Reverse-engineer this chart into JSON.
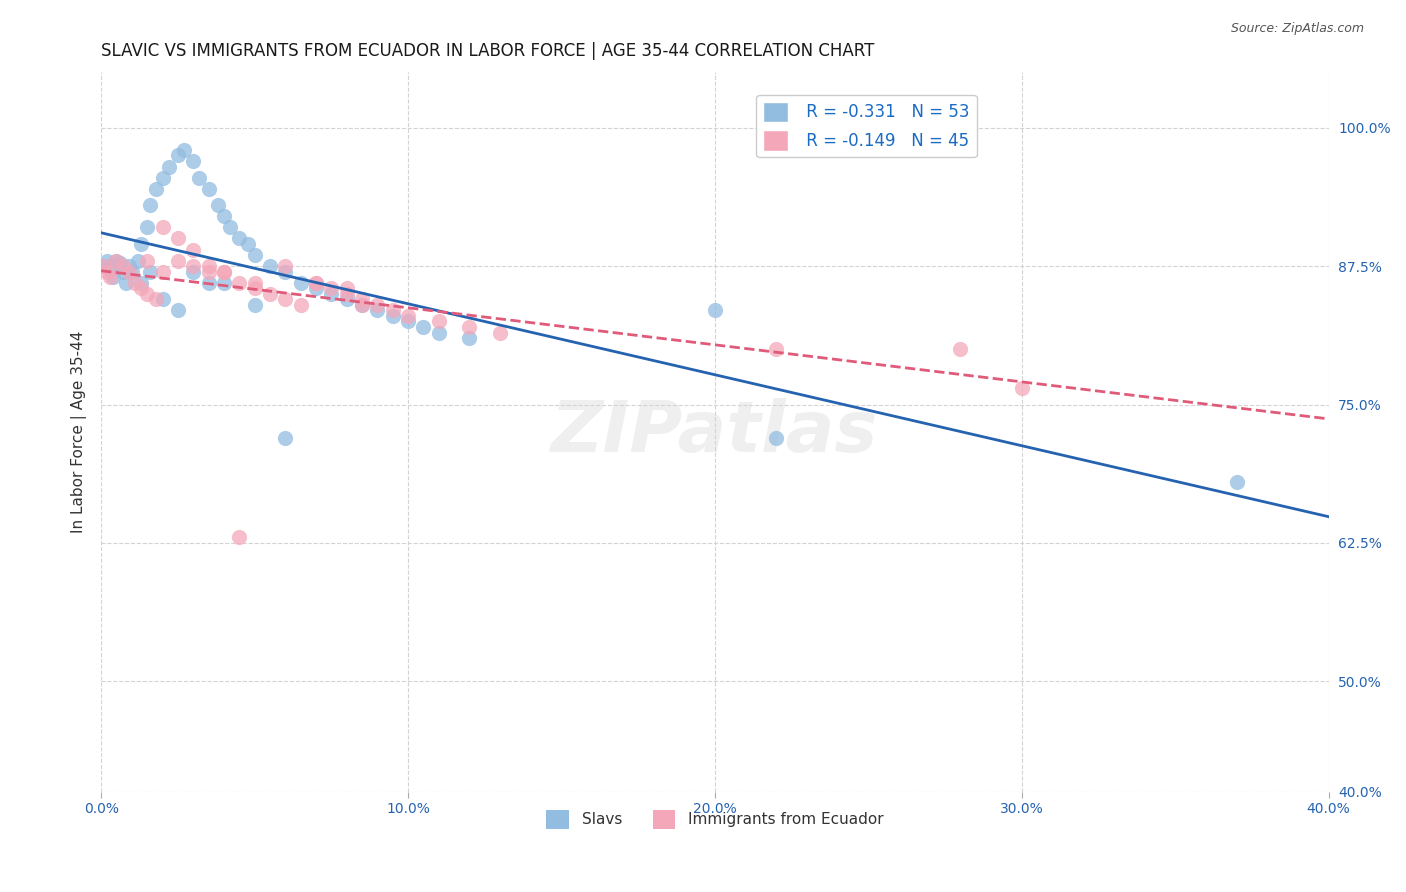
{
  "title": "SLAVIC VS IMMIGRANTS FROM ECUADOR IN LABOR FORCE | AGE 35-44 CORRELATION CHART",
  "source": "Source: ZipAtlas.com",
  "ylabel": "In Labor Force | Age 35-44",
  "xlabel_ticks": [
    "0.0%",
    "10.0%",
    "20.0%",
    "30.0%",
    "40.0%"
  ],
  "xlabel_vals": [
    0.0,
    0.1,
    0.2,
    0.3,
    0.4
  ],
  "ylabel_ticks": [
    "40.0%",
    "50.0%",
    "62.5%",
    "75.0%",
    "87.5%",
    "100.0%"
  ],
  "ylabel_vals": [
    0.4,
    0.5,
    0.625,
    0.75,
    0.875,
    1.0
  ],
  "xlim": [
    0.0,
    0.4
  ],
  "ylim": [
    0.4,
    1.05
  ],
  "slavs_R": "-0.331",
  "slavs_N": "53",
  "ecuador_R": "-0.149",
  "ecuador_N": "45",
  "legend_labels": [
    "Slavs",
    "Immigrants from Ecuador"
  ],
  "slavs_color": "#92bce0",
  "ecuador_color": "#f4a7b9",
  "slavs_line_color": "#2563b0",
  "ecuador_line_color": "#e05a7a",
  "watermark": "ZIPatlas",
  "background_color": "#ffffff",
  "slavs_x": [
    0.001,
    0.002,
    0.003,
    0.004,
    0.005,
    0.006,
    0.007,
    0.008,
    0.009,
    0.01,
    0.012,
    0.013,
    0.015,
    0.016,
    0.018,
    0.02,
    0.022,
    0.025,
    0.027,
    0.03,
    0.032,
    0.035,
    0.038,
    0.04,
    0.042,
    0.045,
    0.048,
    0.05,
    0.055,
    0.06,
    0.065,
    0.07,
    0.075,
    0.08,
    0.085,
    0.09,
    0.095,
    0.1,
    0.105,
    0.11,
    0.12,
    0.013,
    0.016,
    0.02,
    0.025,
    0.03,
    0.035,
    0.04,
    0.05,
    0.06,
    0.2,
    0.22,
    0.37
  ],
  "slavs_y": [
    0.875,
    0.88,
    0.872,
    0.865,
    0.88,
    0.878,
    0.87,
    0.86,
    0.875,
    0.87,
    0.88,
    0.895,
    0.91,
    0.93,
    0.945,
    0.955,
    0.965,
    0.975,
    0.98,
    0.97,
    0.955,
    0.945,
    0.93,
    0.92,
    0.91,
    0.9,
    0.895,
    0.885,
    0.875,
    0.87,
    0.86,
    0.855,
    0.85,
    0.845,
    0.84,
    0.835,
    0.83,
    0.825,
    0.82,
    0.815,
    0.81,
    0.86,
    0.87,
    0.845,
    0.835,
    0.87,
    0.86,
    0.86,
    0.84,
    0.72,
    0.835,
    0.72,
    0.68
  ],
  "ecuador_x": [
    0.001,
    0.002,
    0.003,
    0.005,
    0.007,
    0.009,
    0.011,
    0.013,
    0.015,
    0.018,
    0.02,
    0.025,
    0.03,
    0.035,
    0.04,
    0.045,
    0.05,
    0.055,
    0.06,
    0.065,
    0.07,
    0.075,
    0.08,
    0.085,
    0.09,
    0.095,
    0.1,
    0.11,
    0.12,
    0.13,
    0.015,
    0.02,
    0.025,
    0.03,
    0.035,
    0.04,
    0.05,
    0.06,
    0.07,
    0.08,
    0.22,
    0.3,
    0.045,
    0.085,
    0.28
  ],
  "ecuador_y": [
    0.875,
    0.87,
    0.865,
    0.88,
    0.875,
    0.87,
    0.86,
    0.855,
    0.85,
    0.845,
    0.91,
    0.9,
    0.89,
    0.875,
    0.87,
    0.86,
    0.855,
    0.85,
    0.845,
    0.84,
    0.86,
    0.855,
    0.85,
    0.845,
    0.84,
    0.835,
    0.83,
    0.825,
    0.82,
    0.815,
    0.88,
    0.87,
    0.88,
    0.875,
    0.87,
    0.87,
    0.86,
    0.875,
    0.86,
    0.855,
    0.8,
    0.765,
    0.63,
    0.84,
    0.8
  ]
}
